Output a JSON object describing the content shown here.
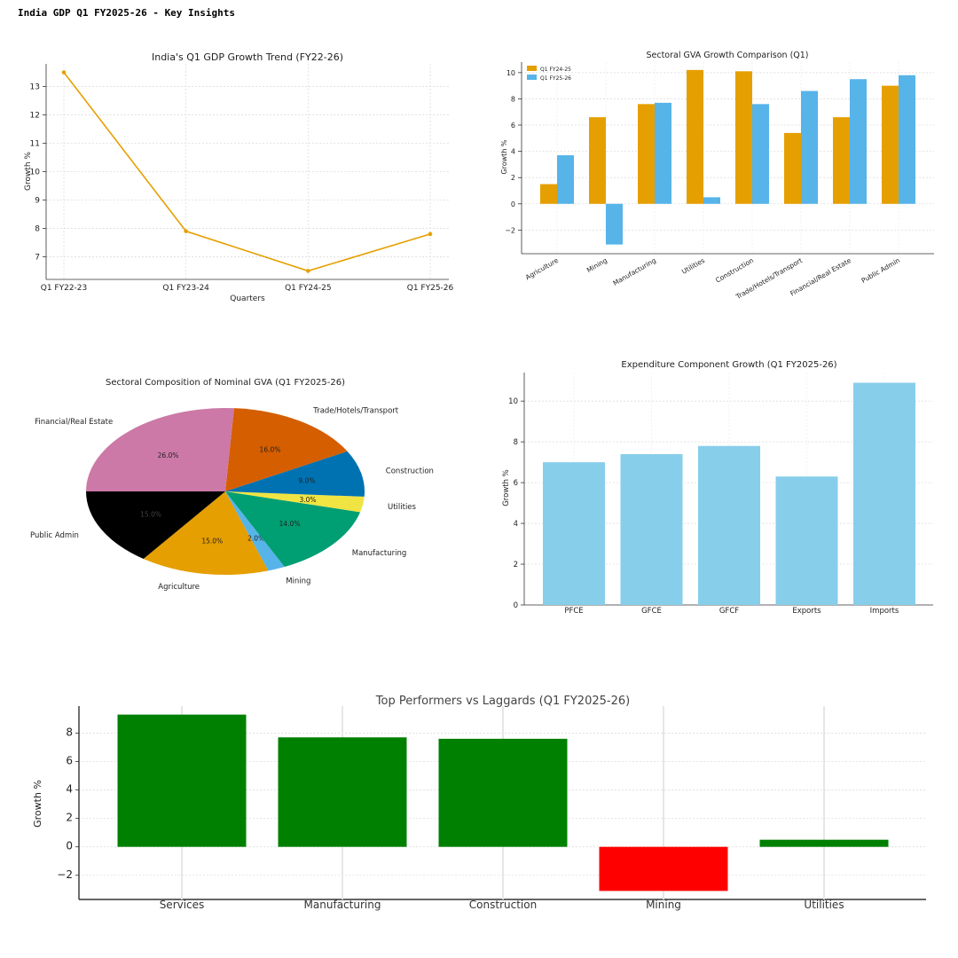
{
  "page": {
    "title": "India GDP Q1 FY2025-26 - Key Insights"
  },
  "chart_data": [
    {
      "type": "line",
      "title": "India's Q1 GDP Growth Trend (FY22-26)",
      "xlabel": "Quarters",
      "ylabel": "Growth %",
      "categories": [
        "Q1 FY22-23",
        "Q1 FY23-24",
        "Q1 FY24-25",
        "Q1 FY25-26"
      ],
      "values": [
        13.5,
        7.9,
        6.5,
        7.8
      ],
      "ylim": [
        6.2,
        13.8
      ],
      "yticks": [
        7,
        8,
        9,
        10,
        11,
        12,
        13
      ],
      "grid": true,
      "color": "#E69F00"
    },
    {
      "type": "bar",
      "title": "Sectoral GVA Growth Comparison (Q1)",
      "ylabel": "Growth %",
      "categories": [
        "Agriculture",
        "Mining",
        "Manufacturing",
        "Utilities",
        "Construction",
        "Trade/Hotels/Transport",
        "Financial/Real Estate",
        "Public Admin"
      ],
      "series": [
        {
          "name": "Q1 FY24-25",
          "values": [
            1.5,
            6.6,
            7.6,
            10.2,
            10.1,
            5.4,
            6.6,
            9.0
          ],
          "color": "#E69F00"
        },
        {
          "name": "Q1 FY25-26",
          "values": [
            3.7,
            -3.1,
            7.7,
            0.5,
            7.6,
            8.6,
            9.5,
            9.8
          ],
          "color": "#56B4E9"
        }
      ],
      "ylim": [
        -3.8,
        10.8
      ],
      "yticks": [
        -2,
        0,
        2,
        4,
        6,
        8,
        10
      ],
      "ytick_labels": [
        "−2",
        "0",
        "2",
        "4",
        "6",
        "8",
        "10"
      ],
      "legend": "top-left",
      "grid": true
    },
    {
      "type": "pie",
      "title": "Sectoral Composition of Nominal GVA (Q1 FY2025-26)",
      "slices": [
        {
          "label": "Agriculture",
          "value": 15.0,
          "pct": "15.0%",
          "color": "#E69F00"
        },
        {
          "label": "Mining",
          "value": 2.0,
          "pct": "2.0%",
          "color": "#56B4E9"
        },
        {
          "label": "Manufacturing",
          "value": 14.0,
          "pct": "14.0%",
          "color": "#009E73"
        },
        {
          "label": "Utilities",
          "value": 3.0,
          "pct": "3.0%",
          "color": "#F0E442"
        },
        {
          "label": "Construction",
          "value": 9.0,
          "pct": "9.0%",
          "color": "#0072B2"
        },
        {
          "label": "Trade/Hotels/Transport",
          "value": 16.0,
          "pct": "16.0%",
          "color": "#D55E00"
        },
        {
          "label": "Financial/Real Estate",
          "value": 26.0,
          "pct": "26.0%",
          "color": "#CC79A7"
        },
        {
          "label": "Public Admin",
          "value": 15.0,
          "pct": "15.0%",
          "color": "#000000"
        }
      ]
    },
    {
      "type": "bar",
      "title": "Expenditure Component Growth (Q1 FY2025-26)",
      "ylabel": "Growth %",
      "categories": [
        "PFCE",
        "GFCE",
        "GFCF",
        "Exports",
        "Imports"
      ],
      "values": [
        7.0,
        7.4,
        7.8,
        6.3,
        10.9
      ],
      "ylim": [
        0,
        11.4
      ],
      "yticks": [
        0,
        2,
        4,
        6,
        8,
        10
      ],
      "grid": true,
      "color": "#87CEEB"
    },
    {
      "type": "bar",
      "title": "Top Performers vs Laggards (Q1 FY2025-26)",
      "ylabel": "Growth %",
      "categories": [
        "Services",
        "Manufacturing",
        "Construction",
        "Mining",
        "Utilities"
      ],
      "values": [
        9.3,
        7.7,
        7.6,
        -3.1,
        0.5
      ],
      "ylim": [
        -3.7,
        9.9
      ],
      "yticks": [
        -2,
        0,
        2,
        4,
        6,
        8
      ],
      "ytick_labels": [
        "−2",
        "0",
        "2",
        "4",
        "6",
        "8"
      ],
      "grid": true,
      "colors": {
        "positive": "#008000",
        "negative": "#FF0000"
      }
    }
  ]
}
